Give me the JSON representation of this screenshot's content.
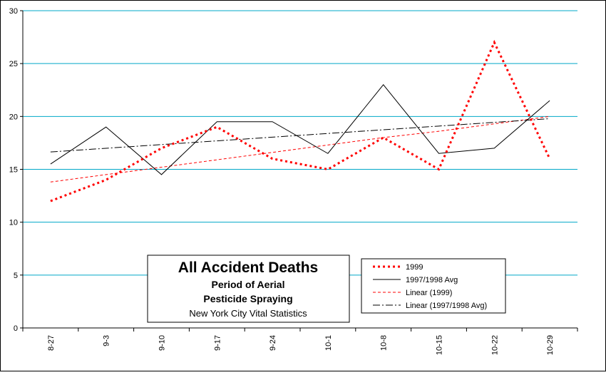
{
  "chart_data": {
    "type": "line",
    "title": "All Accident Deaths",
    "subtitle_lines": [
      "Period of Aerial",
      "Pesticide Spraying"
    ],
    "source": "New York City Vital Statistics",
    "xlabel": "",
    "ylabel": "",
    "categories": [
      "8-27",
      "9-3",
      "9-10",
      "9-17",
      "9-24",
      "10-1",
      "10-8",
      "10-15",
      "10-22",
      "10-29"
    ],
    "ylim": [
      0,
      30
    ],
    "yticks": [
      0,
      5,
      10,
      15,
      20,
      25,
      30
    ],
    "grid": "horizontal",
    "legend_position": "bottom-right",
    "series": [
      {
        "name": "1999",
        "values": [
          12,
          14,
          17,
          19,
          16,
          15,
          18,
          15,
          27,
          16
        ],
        "color": "#ff0000",
        "style": "dotted-bold"
      },
      {
        "name": "1997/1998 Avg",
        "values": [
          15.5,
          19,
          14.5,
          19.5,
          19.5,
          16.5,
          23,
          16.5,
          17,
          21.5
        ],
        "color": "#000000",
        "style": "solid"
      }
    ],
    "trendlines": [
      {
        "name": "Linear (1999)",
        "of": "1999",
        "values": [
          13.8,
          14.5,
          15.2,
          15.9,
          16.6,
          17.3,
          18.0,
          18.6,
          19.3,
          20.0
        ],
        "color": "#ff0000",
        "style": "dashed"
      },
      {
        "name": "Linear (1997/1998 Avg)",
        "of": "1997/1998 Avg",
        "values": [
          16.64,
          16.99,
          17.34,
          17.69,
          18.04,
          18.39,
          18.74,
          19.09,
          19.44,
          19.79
        ],
        "color": "#000000",
        "style": "dash-dot"
      }
    ],
    "colors": {
      "gridline": "#00a8c8",
      "axis": "#000000"
    }
  }
}
